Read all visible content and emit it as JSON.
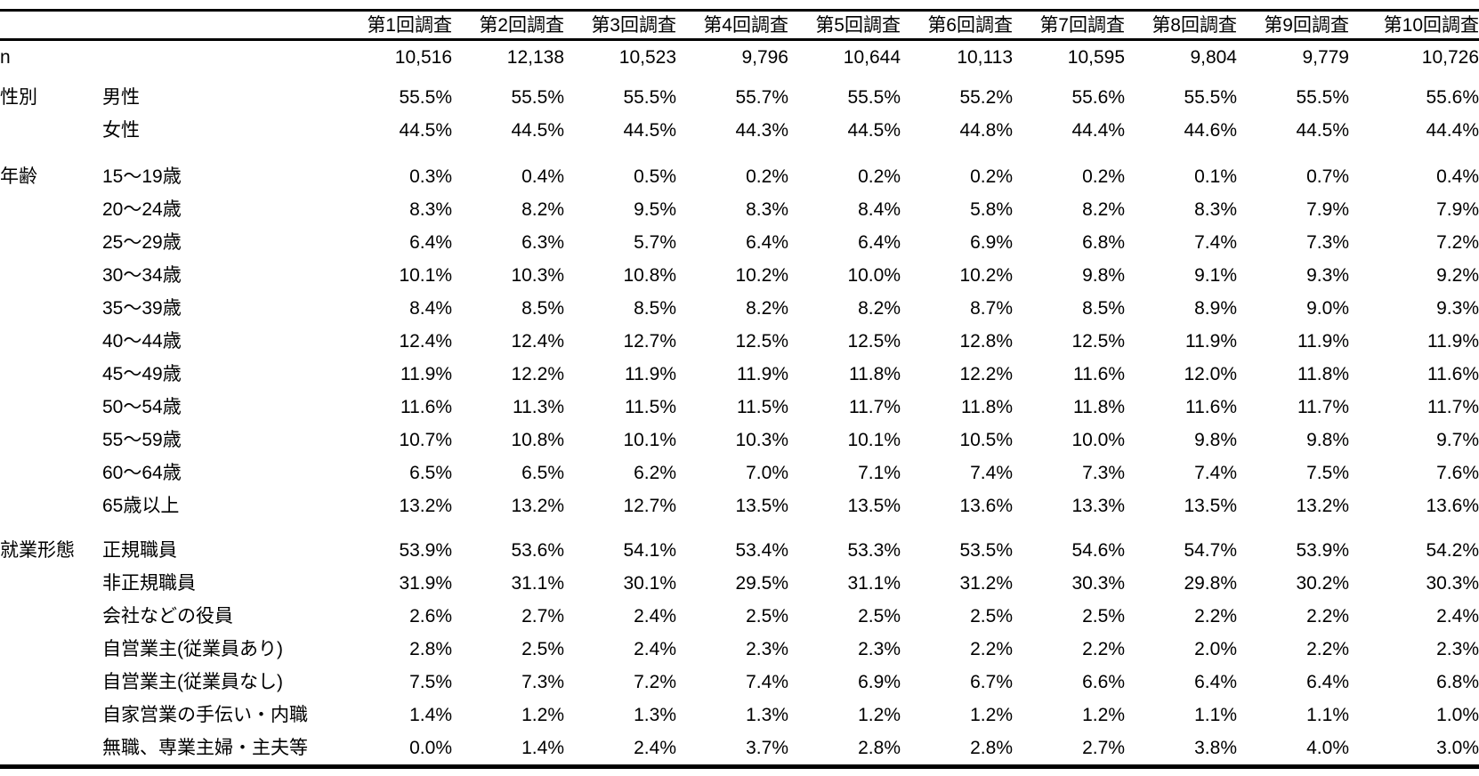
{
  "table": {
    "columns": [
      "第1回調査",
      "第2回調査",
      "第3回調査",
      "第4回調査",
      "第5回調査",
      "第6回調査",
      "第7回調査",
      "第8回調査",
      "第9回調査",
      "第10回調査"
    ],
    "n_row": {
      "label": "n",
      "values": [
        "10,516",
        "12,138",
        "10,523",
        "9,796",
        "10,644",
        "10,113",
        "10,595",
        "9,804",
        "9,779",
        "10,726"
      ]
    },
    "sections": [
      {
        "group": "性別",
        "rows": [
          {
            "label": "男性",
            "values": [
              "55.5%",
              "55.5%",
              "55.5%",
              "55.7%",
              "55.5%",
              "55.2%",
              "55.6%",
              "55.5%",
              "55.5%",
              "55.6%"
            ]
          },
          {
            "label": "女性",
            "values": [
              "44.5%",
              "44.5%",
              "44.5%",
              "44.3%",
              "44.5%",
              "44.8%",
              "44.4%",
              "44.6%",
              "44.5%",
              "44.4%"
            ]
          }
        ]
      },
      {
        "group": "年齢",
        "rows": [
          {
            "label": "15〜19歳",
            "values": [
              "0.3%",
              "0.4%",
              "0.5%",
              "0.2%",
              "0.2%",
              "0.2%",
              "0.2%",
              "0.1%",
              "0.7%",
              "0.4%"
            ]
          },
          {
            "label": "20〜24歳",
            "values": [
              "8.3%",
              "8.2%",
              "9.5%",
              "8.3%",
              "8.4%",
              "5.8%",
              "8.2%",
              "8.3%",
              "7.9%",
              "7.9%"
            ]
          },
          {
            "label": "25〜29歳",
            "values": [
              "6.4%",
              "6.3%",
              "5.7%",
              "6.4%",
              "6.4%",
              "6.9%",
              "6.8%",
              "7.4%",
              "7.3%",
              "7.2%"
            ]
          },
          {
            "label": "30〜34歳",
            "values": [
              "10.1%",
              "10.3%",
              "10.8%",
              "10.2%",
              "10.0%",
              "10.2%",
              "9.8%",
              "9.1%",
              "9.3%",
              "9.2%"
            ]
          },
          {
            "label": "35〜39歳",
            "values": [
              "8.4%",
              "8.5%",
              "8.5%",
              "8.2%",
              "8.2%",
              "8.7%",
              "8.5%",
              "8.9%",
              "9.0%",
              "9.3%"
            ]
          },
          {
            "label": "40〜44歳",
            "values": [
              "12.4%",
              "12.4%",
              "12.7%",
              "12.5%",
              "12.5%",
              "12.8%",
              "12.5%",
              "11.9%",
              "11.9%",
              "11.9%"
            ]
          },
          {
            "label": "45〜49歳",
            "values": [
              "11.9%",
              "12.2%",
              "11.9%",
              "11.9%",
              "11.8%",
              "12.2%",
              "11.6%",
              "12.0%",
              "11.8%",
              "11.6%"
            ]
          },
          {
            "label": "50〜54歳",
            "values": [
              "11.6%",
              "11.3%",
              "11.5%",
              "11.5%",
              "11.7%",
              "11.8%",
              "11.8%",
              "11.6%",
              "11.7%",
              "11.7%"
            ]
          },
          {
            "label": "55〜59歳",
            "values": [
              "10.7%",
              "10.8%",
              "10.1%",
              "10.3%",
              "10.1%",
              "10.5%",
              "10.0%",
              "9.8%",
              "9.8%",
              "9.7%"
            ]
          },
          {
            "label": "60〜64歳",
            "values": [
              "6.5%",
              "6.5%",
              "6.2%",
              "7.0%",
              "7.1%",
              "7.4%",
              "7.3%",
              "7.4%",
              "7.5%",
              "7.6%"
            ]
          },
          {
            "label": "65歳以上",
            "values": [
              "13.2%",
              "13.2%",
              "12.7%",
              "13.5%",
              "13.5%",
              "13.6%",
              "13.3%",
              "13.5%",
              "13.2%",
              "13.6%"
            ]
          }
        ]
      },
      {
        "group": "就業形態",
        "rows": [
          {
            "label": "正規職員",
            "values": [
              "53.9%",
              "53.6%",
              "54.1%",
              "53.4%",
              "53.3%",
              "53.5%",
              "54.6%",
              "54.7%",
              "53.9%",
              "54.2%"
            ]
          },
          {
            "label": "非正規職員",
            "values": [
              "31.9%",
              "31.1%",
              "30.1%",
              "29.5%",
              "31.1%",
              "31.2%",
              "30.3%",
              "29.8%",
              "30.2%",
              "30.3%"
            ]
          },
          {
            "label": "会社などの役員",
            "values": [
              "2.6%",
              "2.7%",
              "2.4%",
              "2.5%",
              "2.5%",
              "2.5%",
              "2.5%",
              "2.2%",
              "2.2%",
              "2.4%"
            ]
          },
          {
            "label": "自営業主(従業員あり)",
            "values": [
              "2.8%",
              "2.5%",
              "2.4%",
              "2.3%",
              "2.3%",
              "2.2%",
              "2.2%",
              "2.0%",
              "2.2%",
              "2.3%"
            ]
          },
          {
            "label": "自営業主(従業員なし)",
            "values": [
              "7.5%",
              "7.3%",
              "7.2%",
              "7.4%",
              "6.9%",
              "6.7%",
              "6.6%",
              "6.4%",
              "6.4%",
              "6.8%"
            ]
          },
          {
            "label": "自家営業の手伝い・内職",
            "values": [
              "1.4%",
              "1.2%",
              "1.3%",
              "1.3%",
              "1.2%",
              "1.2%",
              "1.2%",
              "1.1%",
              "1.1%",
              "1.0%"
            ]
          },
          {
            "label": "無職、専業主婦・主夫等",
            "values": [
              "0.0%",
              "1.4%",
              "2.4%",
              "3.7%",
              "2.8%",
              "2.8%",
              "2.7%",
              "3.8%",
              "4.0%",
              "3.0%"
            ]
          }
        ]
      }
    ]
  }
}
